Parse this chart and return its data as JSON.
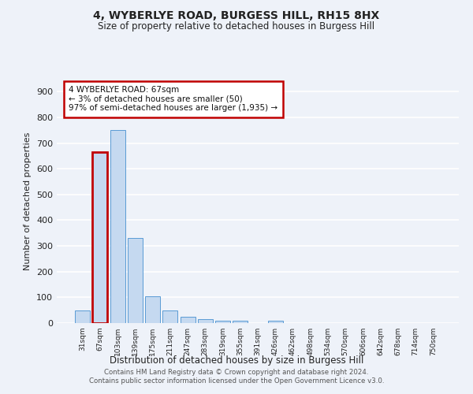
{
  "title": "4, WYBERLYE ROAD, BURGESS HILL, RH15 8HX",
  "subtitle": "Size of property relative to detached houses in Burgess Hill",
  "xlabel": "Distribution of detached houses by size in Burgess Hill",
  "ylabel": "Number of detached properties",
  "categories": [
    "31sqm",
    "67sqm",
    "103sqm",
    "139sqm",
    "175sqm",
    "211sqm",
    "247sqm",
    "283sqm",
    "319sqm",
    "355sqm",
    "391sqm",
    "426sqm",
    "462sqm",
    "498sqm",
    "534sqm",
    "570sqm",
    "606sqm",
    "642sqm",
    "678sqm",
    "714sqm",
    "750sqm"
  ],
  "values": [
    50,
    665,
    750,
    330,
    105,
    50,
    25,
    15,
    10,
    10,
    0,
    10,
    0,
    0,
    0,
    0,
    0,
    0,
    0,
    0,
    0
  ],
  "bar_color": "#c5d9f0",
  "bar_edge_color": "#5a9bd5",
  "highlight_bar_index": 1,
  "highlight_edge_color": "#c00000",
  "annotation_text": "4 WYBERLYE ROAD: 67sqm\n← 3% of detached houses are smaller (50)\n97% of semi-detached houses are larger (1,935) →",
  "annotation_box_color": "#ffffff",
  "annotation_box_edge_color": "#c00000",
  "ylim_max": 950,
  "yticks": [
    0,
    100,
    200,
    300,
    400,
    500,
    600,
    700,
    800,
    900
  ],
  "background_color": "#eef2f9",
  "grid_color": "#ffffff",
  "footer_line1": "Contains HM Land Registry data © Crown copyright and database right 2024.",
  "footer_line2": "Contains public sector information licensed under the Open Government Licence v3.0."
}
